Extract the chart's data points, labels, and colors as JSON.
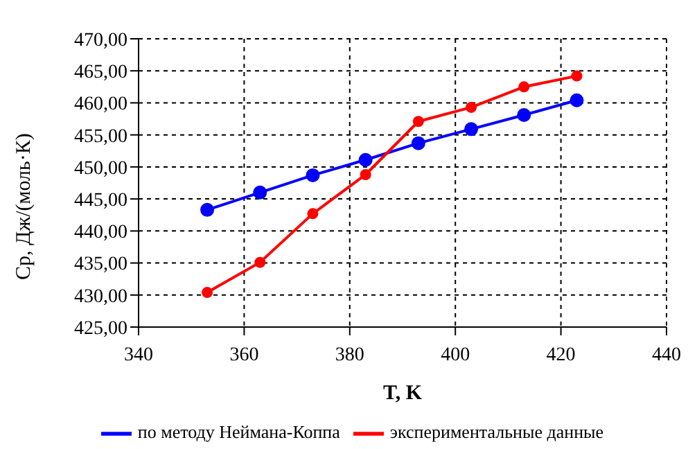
{
  "chart_data": {
    "type": "line",
    "xlabel": "T, K",
    "ylabel": "Cp, Дж/(моль·К)",
    "x": [
      353,
      363,
      373,
      383,
      393,
      403,
      413,
      423
    ],
    "series": [
      {
        "name": "по методу Неймана-Коппа",
        "color": "#0000ff",
        "values": [
          443.3,
          446.0,
          448.7,
          451.1,
          453.7,
          455.9,
          458.1,
          460.4
        ]
      },
      {
        "name": "экспериментальные данные",
        "color": "#ff0000",
        "values": [
          430.4,
          435.1,
          442.7,
          448.8,
          457.1,
          459.3,
          462.5,
          464.2
        ]
      }
    ],
    "xlim": [
      340,
      440
    ],
    "xticks": [
      340,
      360,
      380,
      400,
      420,
      440
    ],
    "ylim": [
      425,
      470
    ],
    "yticks": [
      {
        "value": 425,
        "label": "425,00"
      },
      {
        "value": 430,
        "label": "430,00"
      },
      {
        "value": 435,
        "label": "435,00"
      },
      {
        "value": 440,
        "label": "440,00"
      },
      {
        "value": 445,
        "label": "445,00"
      },
      {
        "value": 450,
        "label": "450,00"
      },
      {
        "value": 455,
        "label": "455,00"
      },
      {
        "value": 460,
        "label": "460,00"
      },
      {
        "value": 465,
        "label": "465,00"
      },
      {
        "value": 470,
        "label": "470,00"
      }
    ],
    "grid": true,
    "legend": "bottom",
    "marker": "circle",
    "line_style": "solid"
  }
}
